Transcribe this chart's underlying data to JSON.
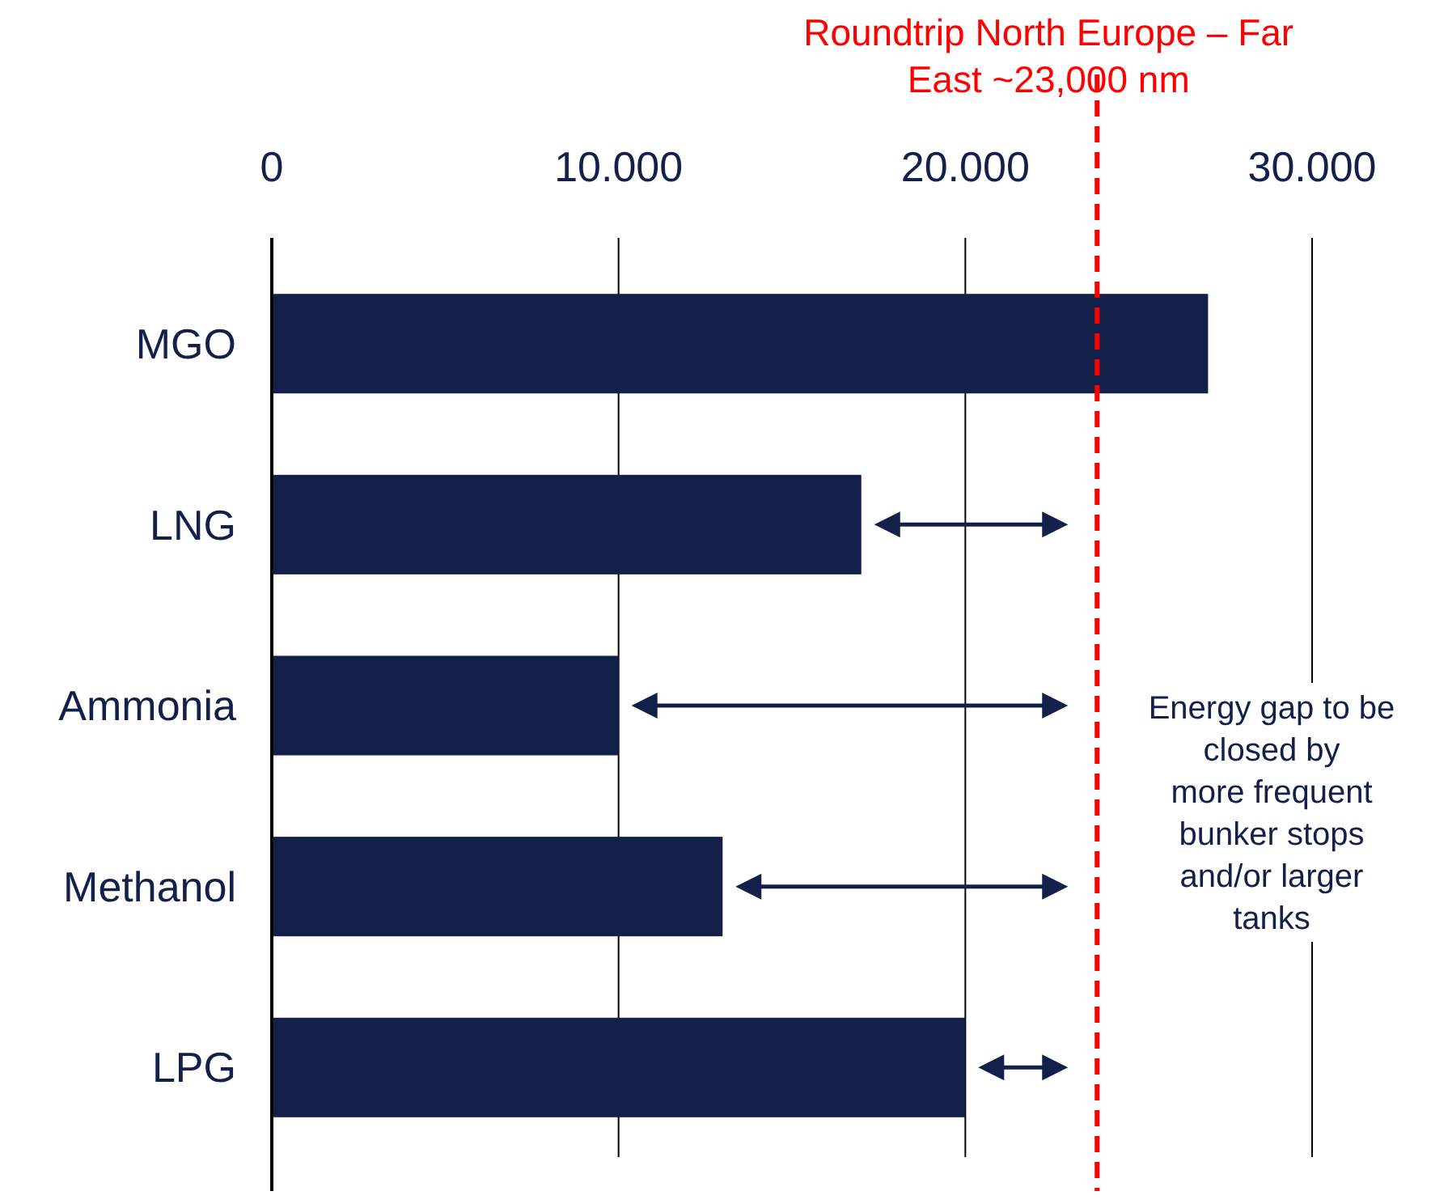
{
  "chart_data": {
    "type": "bar",
    "orientation": "horizontal",
    "categories": [
      "MGO",
      "LNG",
      "Ammonia",
      "Methanol",
      "LPG"
    ],
    "values": [
      27000,
      17000,
      10000,
      13000,
      20000
    ],
    "color": "#12204a",
    "xlim": [
      0,
      30000
    ],
    "xticks": [
      0,
      {
        "value": 10000,
        "label": "10.000"
      },
      {
        "value": 20000,
        "label": "20.000"
      },
      {
        "value": 30000,
        "label": "30.000"
      }
    ],
    "grid": "x",
    "ref_lines": [
      {
        "axis": "x",
        "value": 23800,
        "label": "Roundtrip North Europe – Far\nEast  ~23,000 nm",
        "color": "#ff0000",
        "line_style": "dashed"
      }
    ],
    "annotations": [
      "Energy gap to be\nclosed by\nmore frequent\nbunker stops\nand/or larger\ntanks"
    ]
  }
}
